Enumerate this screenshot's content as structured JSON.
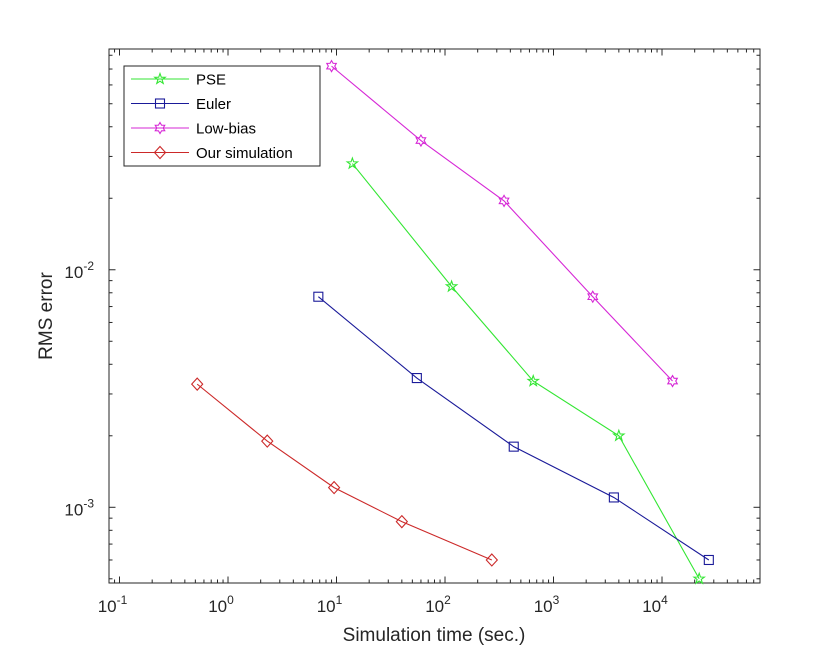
{
  "chart_data": {
    "type": "line",
    "title": "",
    "xlabel": "Simulation time (sec.)",
    "ylabel": "RMS error",
    "xscale": "log",
    "yscale": "log",
    "xlim": [
      0.08,
      80000
    ],
    "ylim": [
      0.00048,
      0.085
    ],
    "x_ticks": [
      {
        "value": 0.1,
        "base": "10",
        "exp": "-1"
      },
      {
        "value": 1,
        "base": "10",
        "exp": "0"
      },
      {
        "value": 10,
        "base": "10",
        "exp": "1"
      },
      {
        "value": 100,
        "base": "10",
        "exp": "2"
      },
      {
        "value": 1000,
        "base": "10",
        "exp": "3"
      },
      {
        "value": 10000,
        "base": "10",
        "exp": "4"
      }
    ],
    "y_ticks": [
      {
        "value": 0.001,
        "base": "10",
        "exp": "-3"
      },
      {
        "value": 0.01,
        "base": "10",
        "exp": "-2"
      }
    ],
    "legend_position": "top-left",
    "series": [
      {
        "name": "PSE",
        "color": "#33e633",
        "marker": "star",
        "x": [
          14,
          115,
          650,
          4000,
          22000
        ],
        "y": [
          0.028,
          0.0085,
          0.0034,
          0.002,
          0.0005
        ]
      },
      {
        "name": "Euler",
        "color": "#1a1a99",
        "marker": "square",
        "x": [
          6.8,
          55,
          430,
          3600,
          27000
        ],
        "y": [
          0.0077,
          0.0035,
          0.0018,
          0.0011,
          0.0006
        ]
      },
      {
        "name": "Low-bias",
        "color": "#d627d6",
        "marker": "hexagram",
        "x": [
          9,
          60,
          350,
          2300,
          12500
        ],
        "y": [
          0.072,
          0.035,
          0.0195,
          0.0077,
          0.0034
        ]
      },
      {
        "name": "Our simulation",
        "color": "#cc2929",
        "marker": "diamond",
        "x": [
          0.52,
          2.3,
          9.5,
          40,
          270
        ],
        "y": [
          0.0033,
          0.0019,
          0.00121,
          0.00087,
          0.0006
        ]
      }
    ]
  }
}
